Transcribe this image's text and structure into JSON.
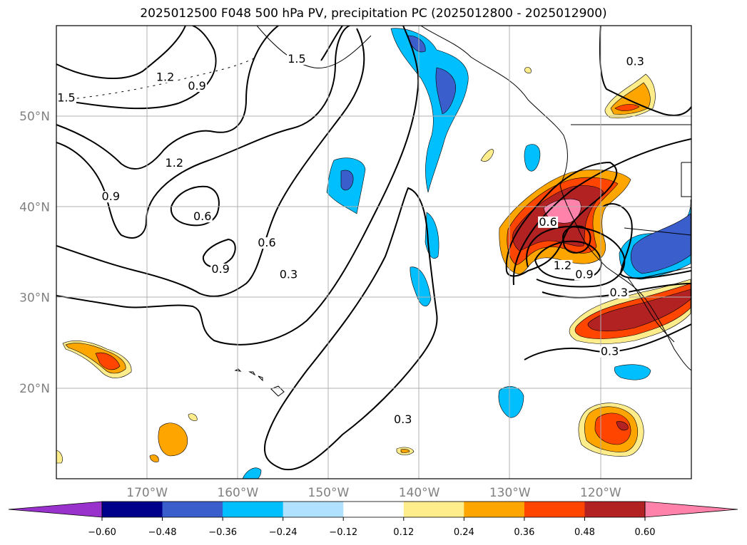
{
  "chart_data": {
    "type": "heatmap",
    "title": "2025012500 F048 500 hPa PV, precipitation PC (2025012800 - 2025012900)",
    "map_extent": {
      "lon": [
        -180,
        -110
      ],
      "lat": [
        10,
        60
      ]
    },
    "lat_ticks": [
      {
        "value": 50,
        "label": "50°N"
      },
      {
        "value": 40,
        "label": "40°N"
      },
      {
        "value": 30,
        "label": "30°N"
      },
      {
        "value": 20,
        "label": "20°N"
      }
    ],
    "lon_ticks": [
      {
        "value": -170,
        "label": "170°W"
      },
      {
        "value": -160,
        "label": "160°W"
      },
      {
        "value": -150,
        "label": "150°W"
      },
      {
        "value": -140,
        "label": "140°W"
      },
      {
        "value": -130,
        "label": "130°W"
      },
      {
        "value": -120,
        "label": "120°W"
      }
    ],
    "grid": true,
    "colorbar": {
      "levels": [
        -0.6,
        -0.48,
        -0.36,
        -0.24,
        -0.12,
        0.12,
        0.24,
        0.36,
        0.48,
        0.6
      ],
      "tick_labels": [
        "−0.60",
        "−0.48",
        "−0.36",
        "−0.24",
        "−0.12",
        "0.12",
        "0.24",
        "0.36",
        "0.48",
        "0.60"
      ],
      "colors": [
        "#9932cc",
        "#00008b",
        "#3a5fcd",
        "#00bfff",
        "#b0e2ff",
        "#ffffff",
        "#ffec8b",
        "#ffa500",
        "#ff4500",
        "#b22222",
        "#ff82ab"
      ],
      "extend": "both"
    },
    "pv_contour_labels": [
      {
        "text": "1.2",
        "lon": -168.0,
        "lat": 54.0
      },
      {
        "text": "0.9",
        "lon": -164.5,
        "lat": 53.0
      },
      {
        "text": "1.5",
        "lon": -153.5,
        "lat": 56.0
      },
      {
        "text": "1.5",
        "lon": -178.9,
        "lat": 51.7
      },
      {
        "text": "1.2",
        "lon": -167.0,
        "lat": 44.5
      },
      {
        "text": "0.9",
        "lon": -174.0,
        "lat": 40.8
      },
      {
        "text": "0.6",
        "lon": -163.9,
        "lat": 38.6
      },
      {
        "text": "0.9",
        "lon": -161.9,
        "lat": 32.8
      },
      {
        "text": "0.6",
        "lon": -156.8,
        "lat": 35.7
      },
      {
        "text": "0.3",
        "lon": -154.4,
        "lat": 32.2
      },
      {
        "text": "0.3",
        "lon": -141.8,
        "lat": 16.2
      },
      {
        "text": "0.6",
        "lon": -125.8,
        "lat": 38.0
      },
      {
        "text": "1.2",
        "lon": -124.2,
        "lat": 33.2
      },
      {
        "text": "0.9",
        "lon": -121.8,
        "lat": 32.2
      },
      {
        "text": "0.3",
        "lon": -118.0,
        "lat": 30.2
      },
      {
        "text": "0.3",
        "lon": -119.0,
        "lat": 23.7
      },
      {
        "text": "0.3",
        "lon": -116.2,
        "lat": 55.7
      }
    ]
  }
}
